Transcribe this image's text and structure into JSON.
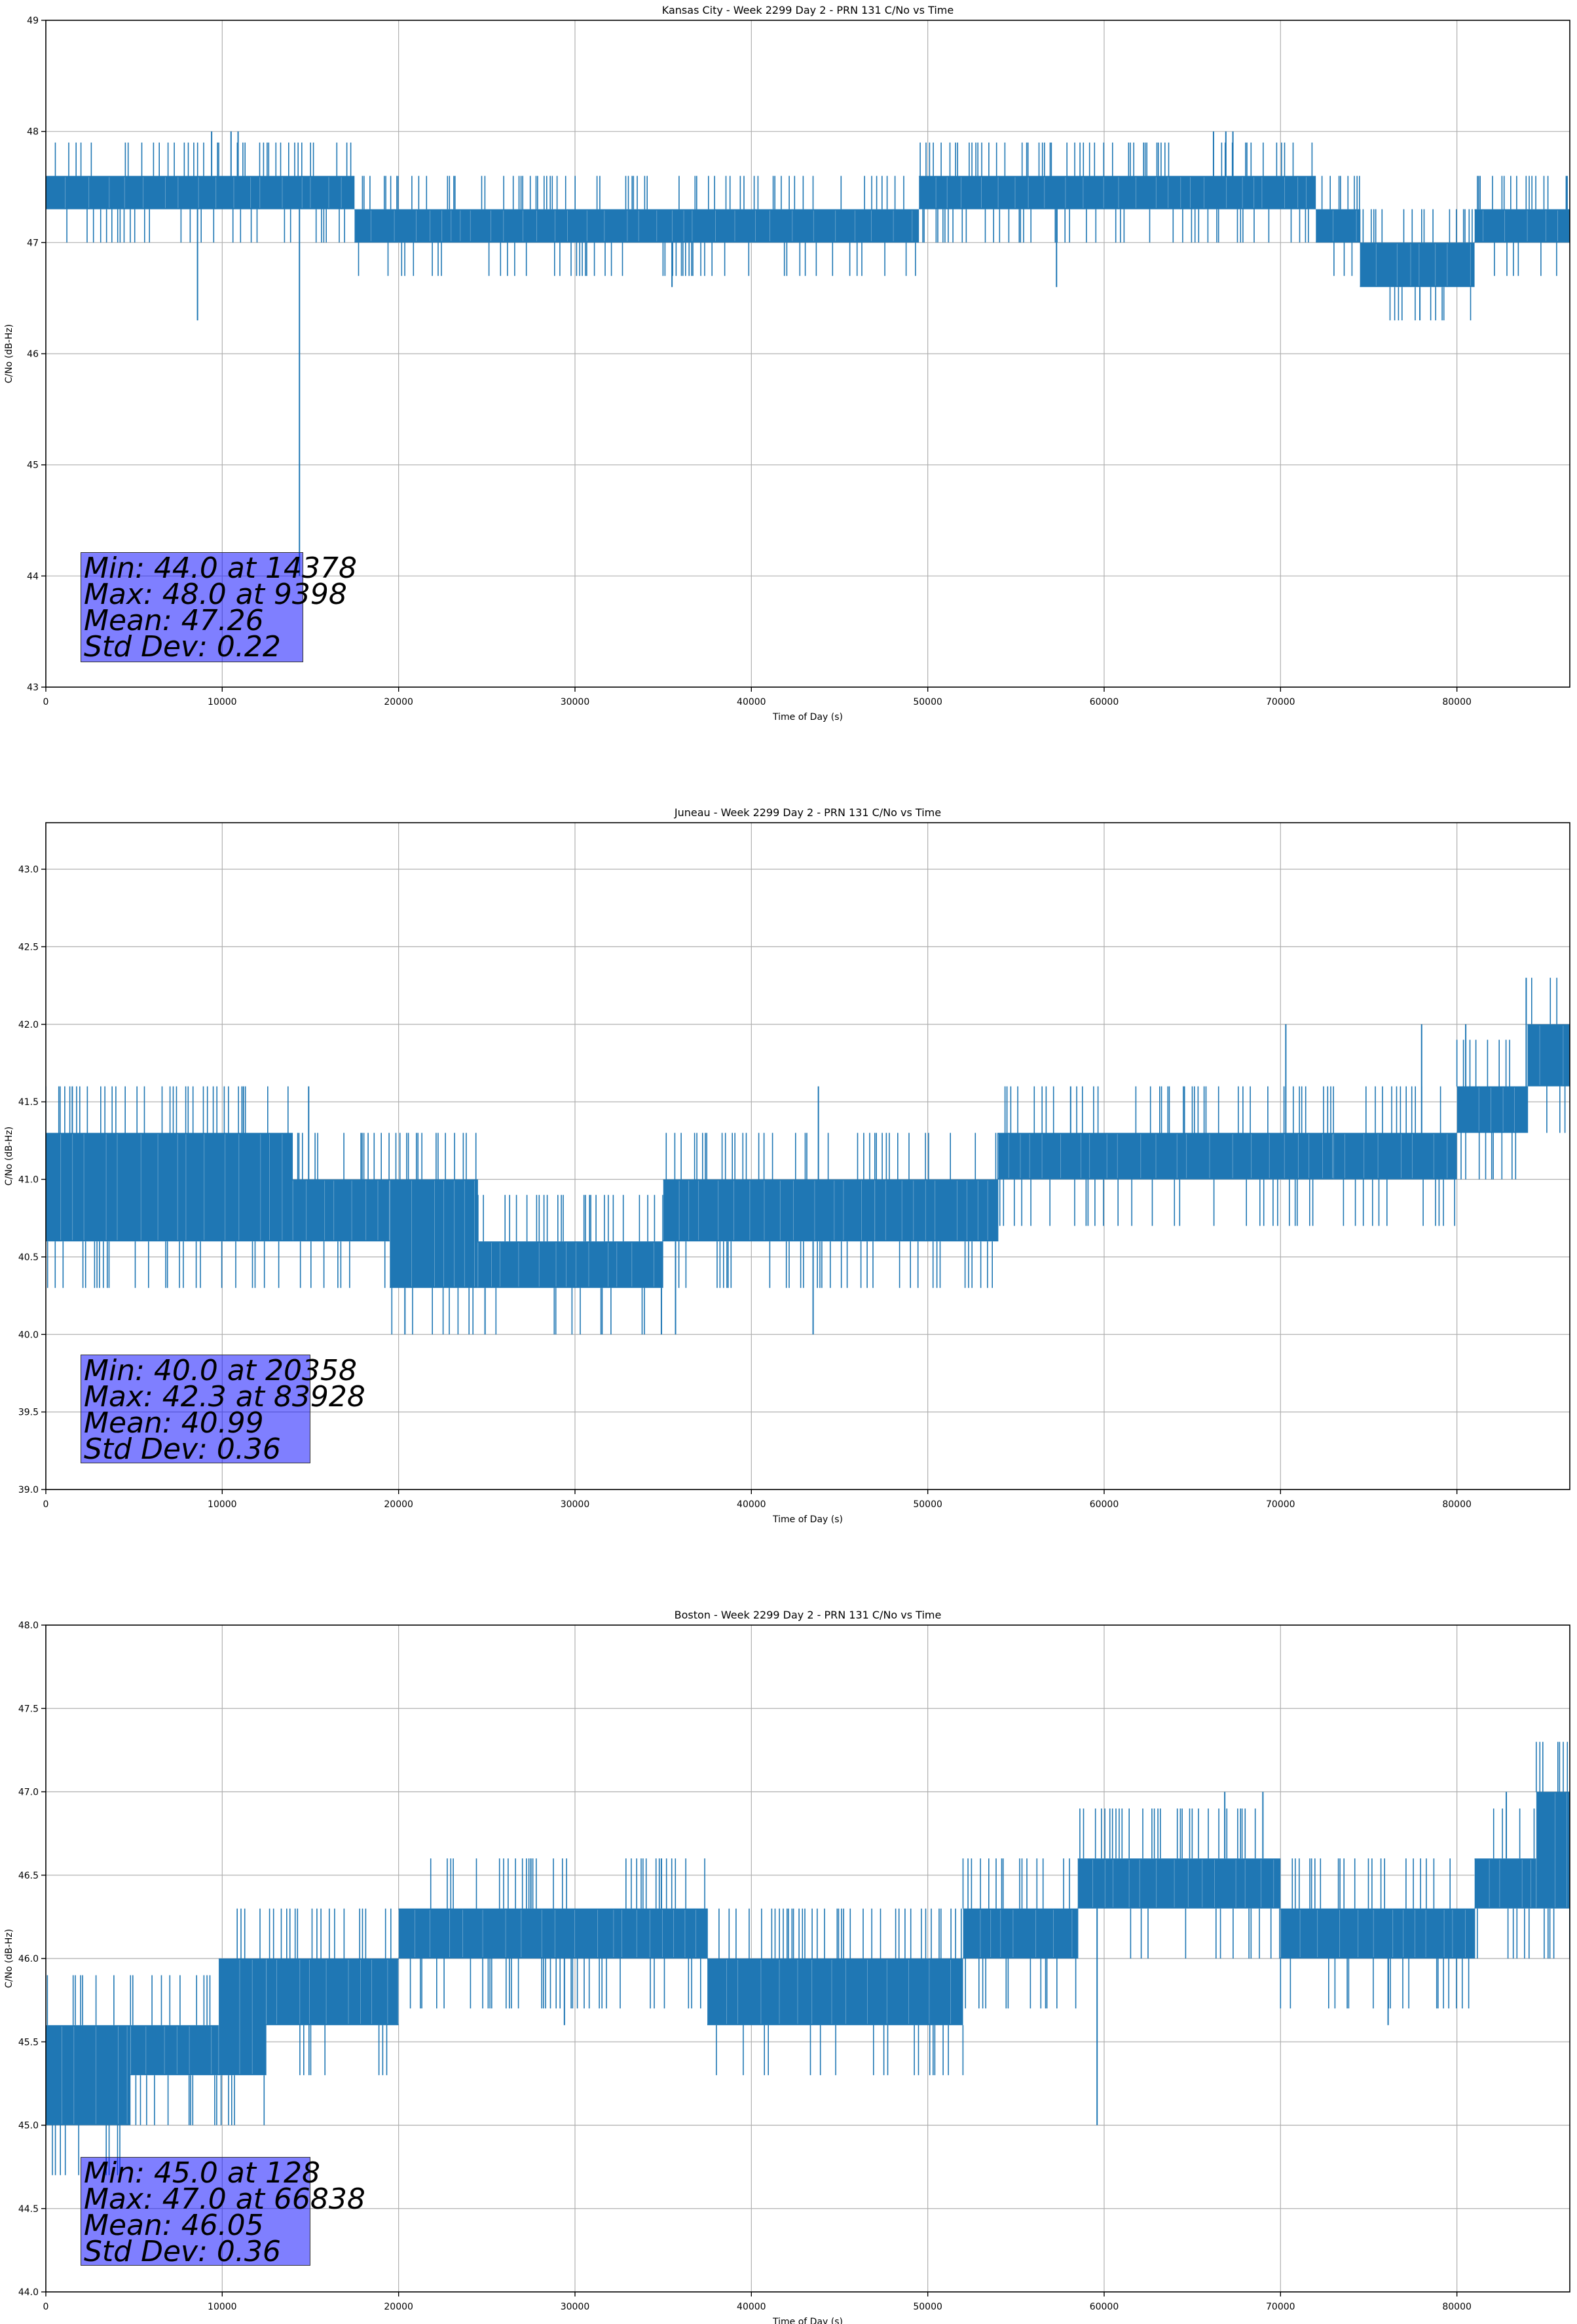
{
  "chart_data": [
    {
      "type": "line",
      "title": "Kansas City - Week 2299 Day 2 - PRN 131 C/No vs Time",
      "xlabel": "Time of Day (s)",
      "ylabel": "C/No (dB-Hz)",
      "xlim": [
        0,
        86400
      ],
      "ylim": [
        43,
        49
      ],
      "xticks": [
        0,
        10000,
        20000,
        30000,
        40000,
        50000,
        60000,
        70000,
        80000
      ],
      "xtick_labels": [
        "0",
        "10000",
        "20000",
        "30000",
        "40000",
        "50000",
        "60000",
        "70000",
        "80000"
      ],
      "yticks": [
        43,
        44,
        45,
        46,
        47,
        48,
        49
      ],
      "ytick_labels": [
        "43",
        "44",
        "45",
        "46",
        "47",
        "48",
        "49"
      ],
      "grid": true,
      "color": "#1f77b4",
      "bands": [
        {
          "x": [
            0,
            17500
          ],
          "low": 47.3,
          "high": 47.6
        },
        {
          "x": [
            17500,
            49500
          ],
          "low": 47.0,
          "high": 47.3
        },
        {
          "x": [
            49500,
            72000
          ],
          "low": 47.3,
          "high": 47.6
        },
        {
          "x": [
            72000,
            74500
          ],
          "low": 47.0,
          "high": 47.3
        },
        {
          "x": [
            74500,
            81000
          ],
          "low": 46.6,
          "high": 47.0
        },
        {
          "x": [
            81000,
            86400
          ],
          "low": 47.0,
          "high": 47.3
        }
      ],
      "spikes": [
        {
          "x": 14378,
          "y": 44.0
        },
        {
          "x": 9398,
          "y": 48.0
        },
        {
          "x": 10500,
          "y": 48.0
        },
        {
          "x": 10900,
          "y": 48.0
        },
        {
          "x": 66200,
          "y": 48.0
        },
        {
          "x": 66900,
          "y": 48.0
        },
        {
          "x": 67300,
          "y": 48.0
        },
        {
          "x": 8600,
          "y": 46.3
        },
        {
          "x": 35500,
          "y": 46.6
        },
        {
          "x": 57300,
          "y": 46.6
        },
        {
          "x": 77900,
          "y": 46.3
        },
        {
          "x": 86200,
          "y": 47.6
        }
      ],
      "stats": {
        "min": "Min: 44.0 at 14378",
        "max": "Max: 48.0 at 9398",
        "mean": "Mean: 47.26",
        "std": "Std Dev: 0.22"
      }
    },
    {
      "type": "line",
      "title": "Juneau - Week 2299 Day 2 - PRN 131 C/No vs Time",
      "xlabel": "Time of Day (s)",
      "ylabel": "C/No (dB-Hz)",
      "xlim": [
        0,
        86400
      ],
      "ylim": [
        39.0,
        43.3
      ],
      "xticks": [
        0,
        10000,
        20000,
        30000,
        40000,
        50000,
        60000,
        70000,
        80000
      ],
      "xtick_labels": [
        "0",
        "10000",
        "20000",
        "30000",
        "40000",
        "50000",
        "60000",
        "70000",
        "80000"
      ],
      "yticks": [
        39.0,
        39.5,
        40.0,
        40.5,
        41.0,
        41.5,
        42.0,
        42.5,
        43.0
      ],
      "ytick_labels": [
        "39.0",
        "39.5",
        "40.0",
        "40.5",
        "41.0",
        "41.5",
        "42.0",
        "42.5",
        "43.0"
      ],
      "grid": true,
      "color": "#1f77b4",
      "bands": [
        {
          "x": [
            0,
            14000
          ],
          "low": 40.6,
          "high": 41.3
        },
        {
          "x": [
            14000,
            19500
          ],
          "low": 40.6,
          "high": 41.0
        },
        {
          "x": [
            19500,
            24500
          ],
          "low": 40.3,
          "high": 41.0
        },
        {
          "x": [
            24500,
            35000
          ],
          "low": 40.3,
          "high": 40.6
        },
        {
          "x": [
            35000,
            47000
          ],
          "low": 40.6,
          "high": 41.0
        },
        {
          "x": [
            47000,
            54000
          ],
          "low": 40.6,
          "high": 41.0
        },
        {
          "x": [
            54000,
            73000
          ],
          "low": 41.0,
          "high": 41.3
        },
        {
          "x": [
            73000,
            80000
          ],
          "low": 41.0,
          "high": 41.3
        },
        {
          "x": [
            80000,
            84000
          ],
          "low": 41.3,
          "high": 41.6
        },
        {
          "x": [
            84000,
            86400
          ],
          "low": 41.6,
          "high": 42.0
        }
      ],
      "spikes": [
        {
          "x": 20358,
          "y": 40.0
        },
        {
          "x": 24900,
          "y": 40.0
        },
        {
          "x": 34900,
          "y": 40.0
        },
        {
          "x": 35700,
          "y": 40.0
        },
        {
          "x": 43500,
          "y": 40.0
        },
        {
          "x": 83928,
          "y": 42.3
        },
        {
          "x": 70300,
          "y": 42.0
        },
        {
          "x": 78000,
          "y": 42.0
        },
        {
          "x": 80500,
          "y": 42.0
        },
        {
          "x": 1500,
          "y": 41.6
        },
        {
          "x": 11200,
          "y": 41.6
        },
        {
          "x": 14900,
          "y": 41.6
        },
        {
          "x": 43800,
          "y": 41.6
        },
        {
          "x": 58100,
          "y": 41.6
        }
      ],
      "stats": {
        "min": "Min: 40.0 at 20358",
        "max": "Max: 42.3 at 83928",
        "mean": "Mean: 40.99",
        "std": "Std Dev: 0.36"
      }
    },
    {
      "type": "line",
      "title": "Boston - Week 2299 Day 2 - PRN 131 C/No vs Time",
      "xlabel": "Time of Day (s)",
      "ylabel": "C/No (dB-Hz)",
      "xlim": [
        0,
        86400
      ],
      "ylim": [
        44.0,
        48.0
      ],
      "xticks": [
        0,
        10000,
        20000,
        30000,
        40000,
        50000,
        60000,
        70000,
        80000
      ],
      "xtick_labels": [
        "0",
        "10000",
        "20000",
        "30000",
        "40000",
        "50000",
        "60000",
        "70000",
        "80000"
      ],
      "yticks": [
        44.0,
        44.5,
        45.0,
        45.5,
        46.0,
        46.5,
        47.0,
        47.5,
        48.0
      ],
      "ytick_labels": [
        "44.0",
        "44.5",
        "45.0",
        "45.5",
        "46.0",
        "46.5",
        "47.0",
        "47.5",
        "48.0"
      ],
      "grid": true,
      "color": "#1f77b4",
      "bands": [
        {
          "x": [
            0,
            4800
          ],
          "low": 45.0,
          "high": 45.6
        },
        {
          "x": [
            4800,
            9800
          ],
          "low": 45.3,
          "high": 45.6
        },
        {
          "x": [
            9800,
            12500
          ],
          "low": 45.3,
          "high": 46.0
        },
        {
          "x": [
            12500,
            20000
          ],
          "low": 45.6,
          "high": 46.0
        },
        {
          "x": [
            20000,
            37500
          ],
          "low": 46.0,
          "high": 46.3
        },
        {
          "x": [
            37500,
            52000
          ],
          "low": 45.6,
          "high": 46.0
        },
        {
          "x": [
            52000,
            58500
          ],
          "low": 46.0,
          "high": 46.3
        },
        {
          "x": [
            58500,
            70000
          ],
          "low": 46.3,
          "high": 46.6
        },
        {
          "x": [
            70000,
            81000
          ],
          "low": 46.0,
          "high": 46.3
        },
        {
          "x": [
            81000,
            84500
          ],
          "low": 46.3,
          "high": 46.6
        },
        {
          "x": [
            84500,
            86400
          ],
          "low": 46.3,
          "high": 47.0
        }
      ],
      "spikes": [
        {
          "x": 128,
          "y": 45.0
        },
        {
          "x": 59600,
          "y": 45.0
        },
        {
          "x": 66838,
          "y": 47.0
        },
        {
          "x": 69000,
          "y": 47.0
        },
        {
          "x": 82800,
          "y": 47.0
        },
        {
          "x": 27500,
          "y": 46.6
        },
        {
          "x": 34900,
          "y": 46.6
        },
        {
          "x": 29400,
          "y": 45.6
        },
        {
          "x": 76100,
          "y": 45.6
        }
      ],
      "stats": {
        "min": "Min: 45.0 at 128",
        "max": "Max: 47.0 at 66838",
        "mean": "Mean: 46.05",
        "std": "Std Dev: 0.36"
      }
    }
  ]
}
